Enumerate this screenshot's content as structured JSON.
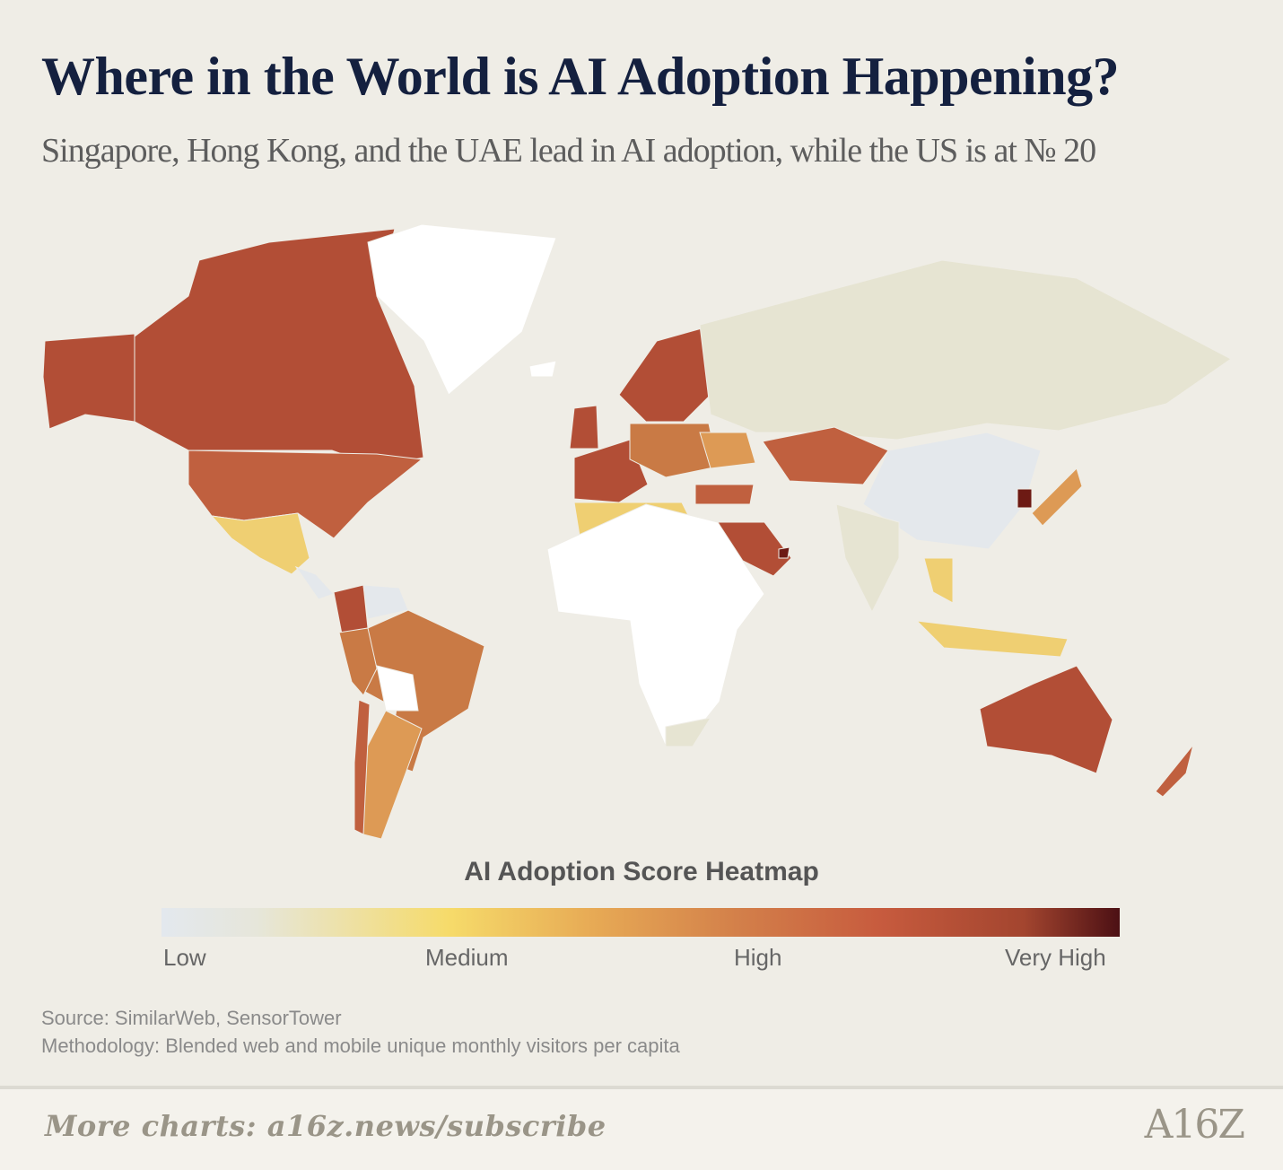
{
  "header": {
    "title": "Where in the World is AI Adoption Happening?",
    "subtitle": "Singapore, Hong Kong, and the UAE lead in AI adoption, while the US is at № 20"
  },
  "legend": {
    "title": "AI Adoption Score Heatmap",
    "labels": [
      "Low",
      "Medium",
      "High",
      "Very High"
    ],
    "colors": [
      "#e3e8ee",
      "#f6db6a",
      "#d3804a",
      "#4c1014"
    ]
  },
  "map": {
    "level_colors": {
      "none": "#ffffff",
      "low": "#e4e8ec",
      "low_neutral": "#e6e4d2",
      "medium": "#efcf72",
      "medium_high": "#dd9a55",
      "high": "#c97a45",
      "high_plus": "#c0603f",
      "very_high": "#b24e36",
      "top": "#6d1a14"
    }
  },
  "footer": {
    "source": "Source: SimilarWeb, SensorTower",
    "methodology": "Methodology: Blended web and mobile unique monthly visitors per capita",
    "more_charts": "More charts: a16z.news/subscribe",
    "logo": "A16Z"
  }
}
